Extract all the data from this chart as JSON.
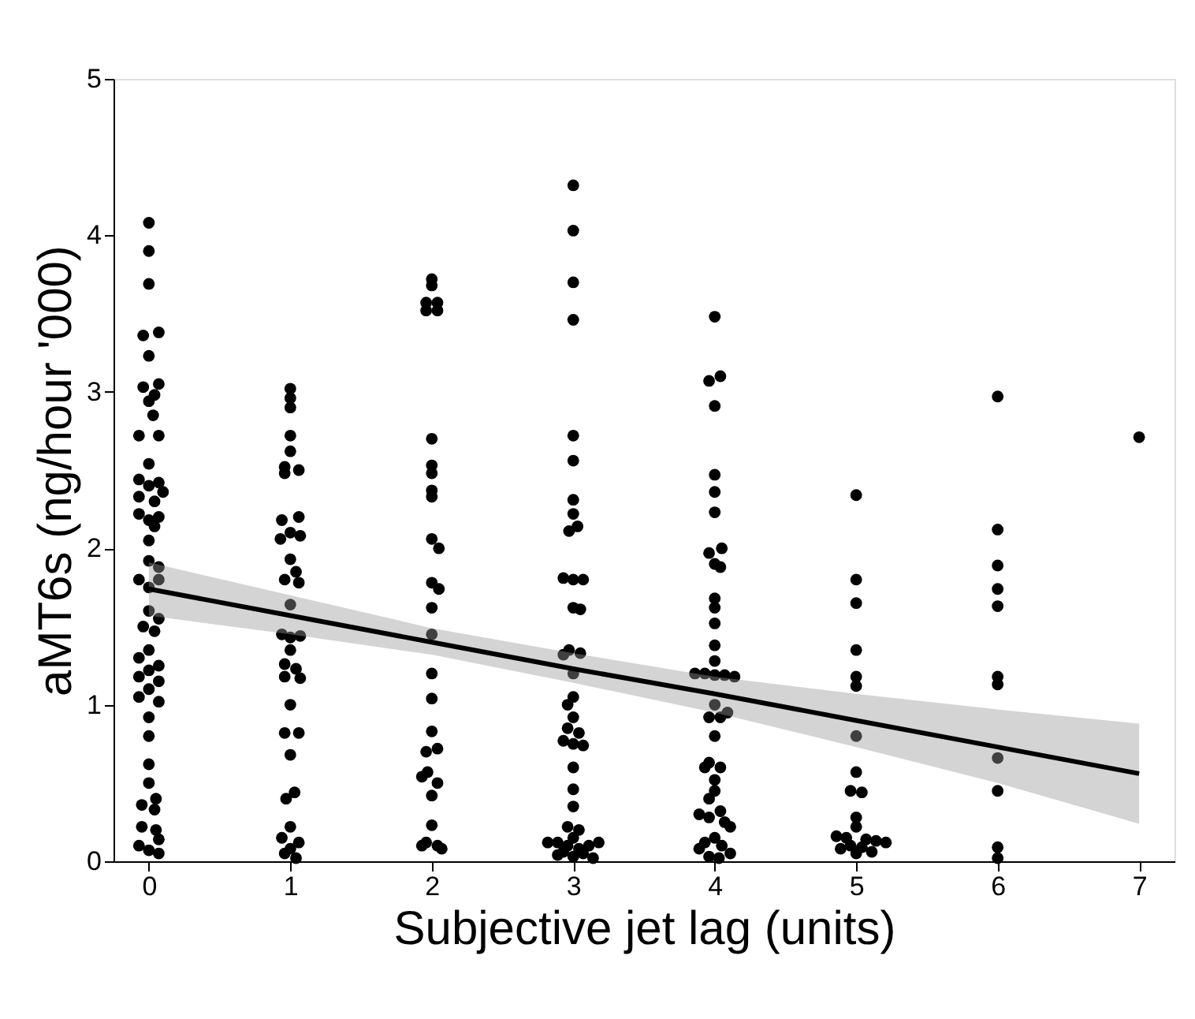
{
  "chart_data": {
    "type": "scatter",
    "xlabel": "Subjective jet lag (units)",
    "ylabel": "aMT6s (ng/hour '000)",
    "xlim": [
      -0.25,
      7.25
    ],
    "xticks": [
      0,
      1,
      2,
      3,
      4,
      5,
      6,
      7
    ],
    "ylim": [
      0,
      5
    ],
    "yticks": [
      0,
      1,
      2,
      3,
      4,
      5
    ],
    "grid": false,
    "series": [
      {
        "marker": "circle",
        "color": "#000000",
        "x": [
          0,
          0,
          0,
          0.07,
          -0.04,
          0,
          0.07,
          -0.04,
          0.04,
          0,
          0.03,
          -0.07,
          0.07,
          0,
          -0.07,
          0.07,
          0,
          0.1,
          -0.07,
          0.04,
          -0.07,
          0.07,
          0,
          0.04,
          0,
          0,
          0.07,
          -0.07,
          0.07,
          0,
          0,
          0.07,
          -0.04,
          0.04,
          0,
          -0.07,
          0.07,
          0,
          -0.07,
          0.07,
          0,
          -0.07,
          0.07,
          0,
          0,
          0,
          0,
          0.05,
          -0.05,
          0.04,
          -0.05,
          0.05,
          0.07,
          -0.07,
          0,
          0.07
        ],
        "values": [
          4.08,
          3.9,
          3.69,
          3.38,
          3.36,
          3.23,
          3.05,
          3.03,
          2.98,
          2.94,
          2.85,
          2.72,
          2.72,
          2.54,
          2.44,
          2.42,
          2.4,
          2.36,
          2.33,
          2.3,
          2.22,
          2.2,
          2.18,
          2.14,
          2.05,
          1.92,
          1.88,
          1.8,
          1.8,
          1.75,
          1.6,
          1.55,
          1.5,
          1.47,
          1.35,
          1.3,
          1.25,
          1.22,
          1.18,
          1.15,
          1.1,
          1.05,
          1.02,
          0.92,
          0.8,
          0.62,
          0.5,
          0.4,
          0.36,
          0.33,
          0.22,
          0.2,
          0.14,
          0.1,
          0.07,
          0.05
        ]
      },
      {
        "marker": "circle",
        "color": "#000000",
        "x": [
          1,
          1,
          1,
          1,
          1,
          0.96,
          1.06,
          0.96,
          1.06,
          0.94,
          1,
          1.07,
          0.93,
          1,
          1.04,
          0.96,
          1.06,
          1,
          0.94,
          1.07,
          1,
          1,
          0.96,
          1.04,
          0.96,
          1.07,
          1,
          0.96,
          1.06,
          1,
          1.03,
          0.97,
          1,
          0.94,
          1.06,
          1,
          0.96,
          1.04
        ],
        "values": [
          3.02,
          2.96,
          2.9,
          2.72,
          2.62,
          2.52,
          2.5,
          2.48,
          2.2,
          2.18,
          2.1,
          2.08,
          2.06,
          1.93,
          1.85,
          1.8,
          1.78,
          1.64,
          1.45,
          1.44,
          1.43,
          1.35,
          1.26,
          1.23,
          1.18,
          1.17,
          1.0,
          0.82,
          0.82,
          0.68,
          0.44,
          0.4,
          0.22,
          0.15,
          0.12,
          0.08,
          0.05,
          0.02
        ]
      },
      {
        "marker": "circle",
        "color": "#000000",
        "x": [
          2,
          2,
          1.96,
          2.04,
          1.96,
          2.04,
          2,
          2,
          2,
          2,
          2,
          2,
          2.05,
          2,
          2.05,
          2,
          2,
          2,
          2,
          2,
          2.04,
          1.96,
          1.97,
          1.93,
          2.04,
          2,
          2,
          1.96,
          2.04,
          1.93,
          2.07
        ],
        "values": [
          3.72,
          3.68,
          3.57,
          3.57,
          3.52,
          3.52,
          2.7,
          2.53,
          2.48,
          2.37,
          2.33,
          2.06,
          2.0,
          1.78,
          1.74,
          1.62,
          1.45,
          1.2,
          1.04,
          0.83,
          0.72,
          0.7,
          0.57,
          0.54,
          0.5,
          0.42,
          0.23,
          0.12,
          0.1,
          0.1,
          0.08
        ]
      },
      {
        "marker": "circle",
        "color": "#000000",
        "x": [
          3,
          3,
          3,
          3,
          3,
          3,
          3,
          3,
          3.03,
          2.97,
          2.93,
          3,
          3.07,
          3,
          3.05,
          2.97,
          3.05,
          2.93,
          3,
          3,
          2.96,
          3,
          2.96,
          3.04,
          2.93,
          3,
          3.07,
          3,
          3,
          3,
          2.96,
          3.04,
          3,
          2.82,
          2.89,
          3.18,
          2.96,
          3.11,
          3.04,
          2.93,
          3.07,
          2.89,
          3,
          3.14
        ],
        "values": [
          4.32,
          4.03,
          3.7,
          3.46,
          2.72,
          2.56,
          2.31,
          2.22,
          2.14,
          2.11,
          1.81,
          1.8,
          1.8,
          1.62,
          1.61,
          1.35,
          1.33,
          1.32,
          1.2,
          1.05,
          1.0,
          0.92,
          0.85,
          0.82,
          0.77,
          0.75,
          0.74,
          0.6,
          0.46,
          0.35,
          0.22,
          0.2,
          0.15,
          0.12,
          0.12,
          0.12,
          0.1,
          0.1,
          0.08,
          0.06,
          0.05,
          0.04,
          0.03,
          0.02
        ]
      },
      {
        "marker": "circle",
        "color": "#000000",
        "x": [
          4,
          4.04,
          3.96,
          4,
          4,
          4,
          4,
          4.05,
          3.96,
          4,
          4.04,
          4,
          4,
          4,
          4,
          4,
          3.86,
          3.93,
          4,
          4.07,
          4.14,
          4,
          4.09,
          3.96,
          4.04,
          4,
          3.96,
          4.04,
          3.93,
          4,
          4,
          3.96,
          4.04,
          3.89,
          3.96,
          4.07,
          4.11,
          4,
          3.93,
          4.05,
          3.89,
          4.11,
          3.96,
          4.03
        ],
        "values": [
          3.48,
          3.1,
          3.07,
          2.91,
          2.47,
          2.36,
          2.23,
          2.0,
          1.97,
          1.9,
          1.88,
          1.68,
          1.62,
          1.52,
          1.38,
          1.28,
          1.2,
          1.2,
          1.19,
          1.19,
          1.18,
          1.0,
          0.95,
          0.92,
          0.92,
          0.8,
          0.63,
          0.6,
          0.6,
          0.52,
          0.45,
          0.4,
          0.32,
          0.3,
          0.28,
          0.25,
          0.22,
          0.15,
          0.12,
          0.1,
          0.08,
          0.05,
          0.03,
          0.02
        ]
      },
      {
        "marker": "circle",
        "color": "#000000",
        "x": [
          5,
          5,
          5,
          5,
          5,
          5,
          5,
          5,
          4.96,
          5.04,
          5,
          5,
          4.86,
          4.93,
          5.07,
          5.14,
          5.21,
          4.96,
          5.04,
          4.89,
          5.11,
          5
        ],
        "values": [
          2.34,
          1.8,
          1.65,
          1.35,
          1.18,
          1.12,
          0.8,
          0.57,
          0.45,
          0.44,
          0.28,
          0.22,
          0.16,
          0.15,
          0.14,
          0.13,
          0.12,
          0.1,
          0.09,
          0.08,
          0.06,
          0.05
        ]
      },
      {
        "marker": "circle",
        "color": "#000000",
        "x": [
          6,
          6,
          6,
          6,
          6,
          6,
          6,
          6,
          6,
          6,
          6
        ],
        "values": [
          2.97,
          2.12,
          1.89,
          1.74,
          1.63,
          1.18,
          1.13,
          0.66,
          0.45,
          0.09,
          0.02
        ]
      },
      {
        "marker": "circle",
        "color": "#000000",
        "x": [
          7
        ],
        "values": [
          2.71
        ]
      },
      {
        "type": "line",
        "color": "#000000",
        "x": [
          0,
          1,
          2,
          3,
          4,
          5,
          6,
          7
        ],
        "values": [
          1.74,
          1.57,
          1.4,
          1.23,
          1.07,
          0.9,
          0.73,
          0.56
        ],
        "lower": [
          1.57,
          1.45,
          1.32,
          1.14,
          0.95,
          0.73,
          0.5,
          0.24
        ],
        "upper": [
          1.91,
          1.7,
          1.49,
          1.33,
          1.18,
          1.07,
          0.97,
          0.88
        ]
      }
    ]
  }
}
